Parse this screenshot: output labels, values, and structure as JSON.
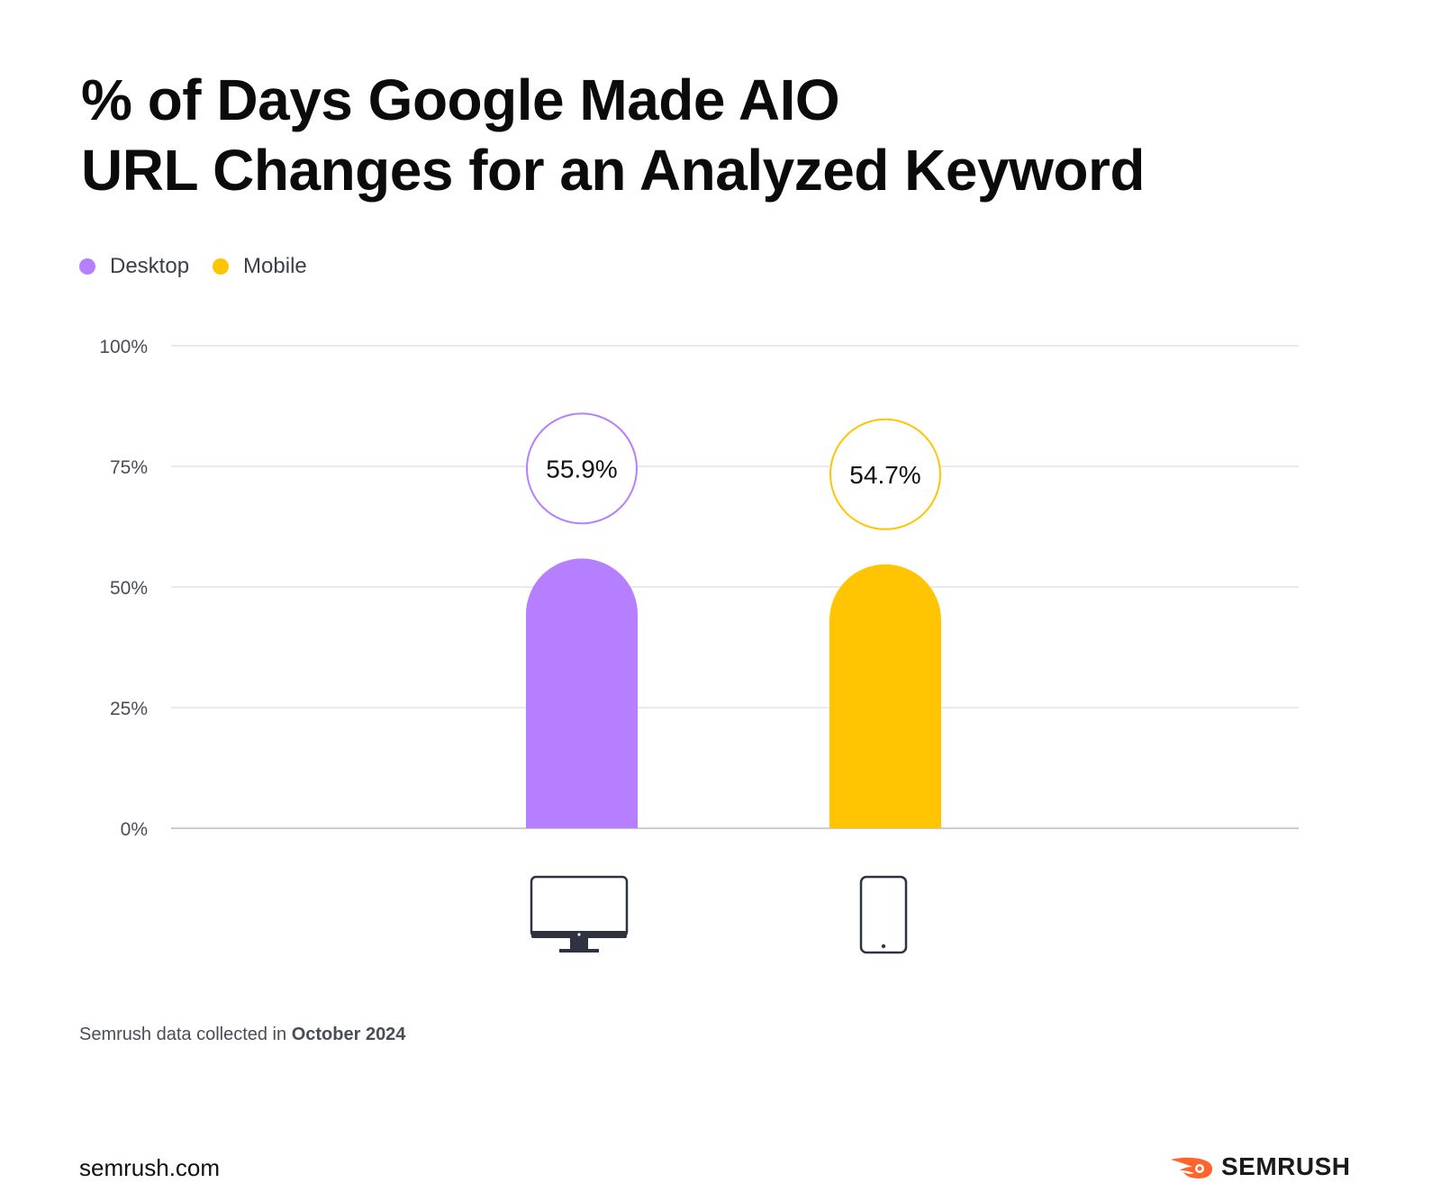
{
  "header": {
    "title_line1": "% of Days Google Made AIO",
    "title_line2": "URL Changes for an Analyzed Keyword"
  },
  "legend": [
    {
      "label": "Desktop",
      "color": "#b57fff"
    },
    {
      "label": "Mobile",
      "color": "#ffc502"
    }
  ],
  "chart_data": {
    "type": "bar",
    "title": "% of Days Google Made AIO URL Changes for an Analyzed Keyword",
    "categories": [
      "Desktop",
      "Mobile"
    ],
    "category_icons": [
      "desktop-monitor-icon",
      "mobile-phone-icon"
    ],
    "values": [
      55.9,
      54.7
    ],
    "value_labels": [
      "55.9%",
      "54.7%"
    ],
    "colors": [
      "#b57fff",
      "#ffc502"
    ],
    "ylim": [
      0,
      100
    ],
    "yticks": [
      0,
      25,
      50,
      75,
      100
    ],
    "ytick_labels": [
      "0%",
      "25%",
      "50%",
      "75%",
      "100%"
    ],
    "xlabel": "",
    "ylabel": "",
    "grid": true,
    "legend_position": "top-left"
  },
  "footer": {
    "note_prefix": "Semrush data collected in",
    "note_date": "October 2024",
    "site": "semrush.com",
    "brand": "SEMRUSH",
    "brand_color": "#ff642d"
  }
}
